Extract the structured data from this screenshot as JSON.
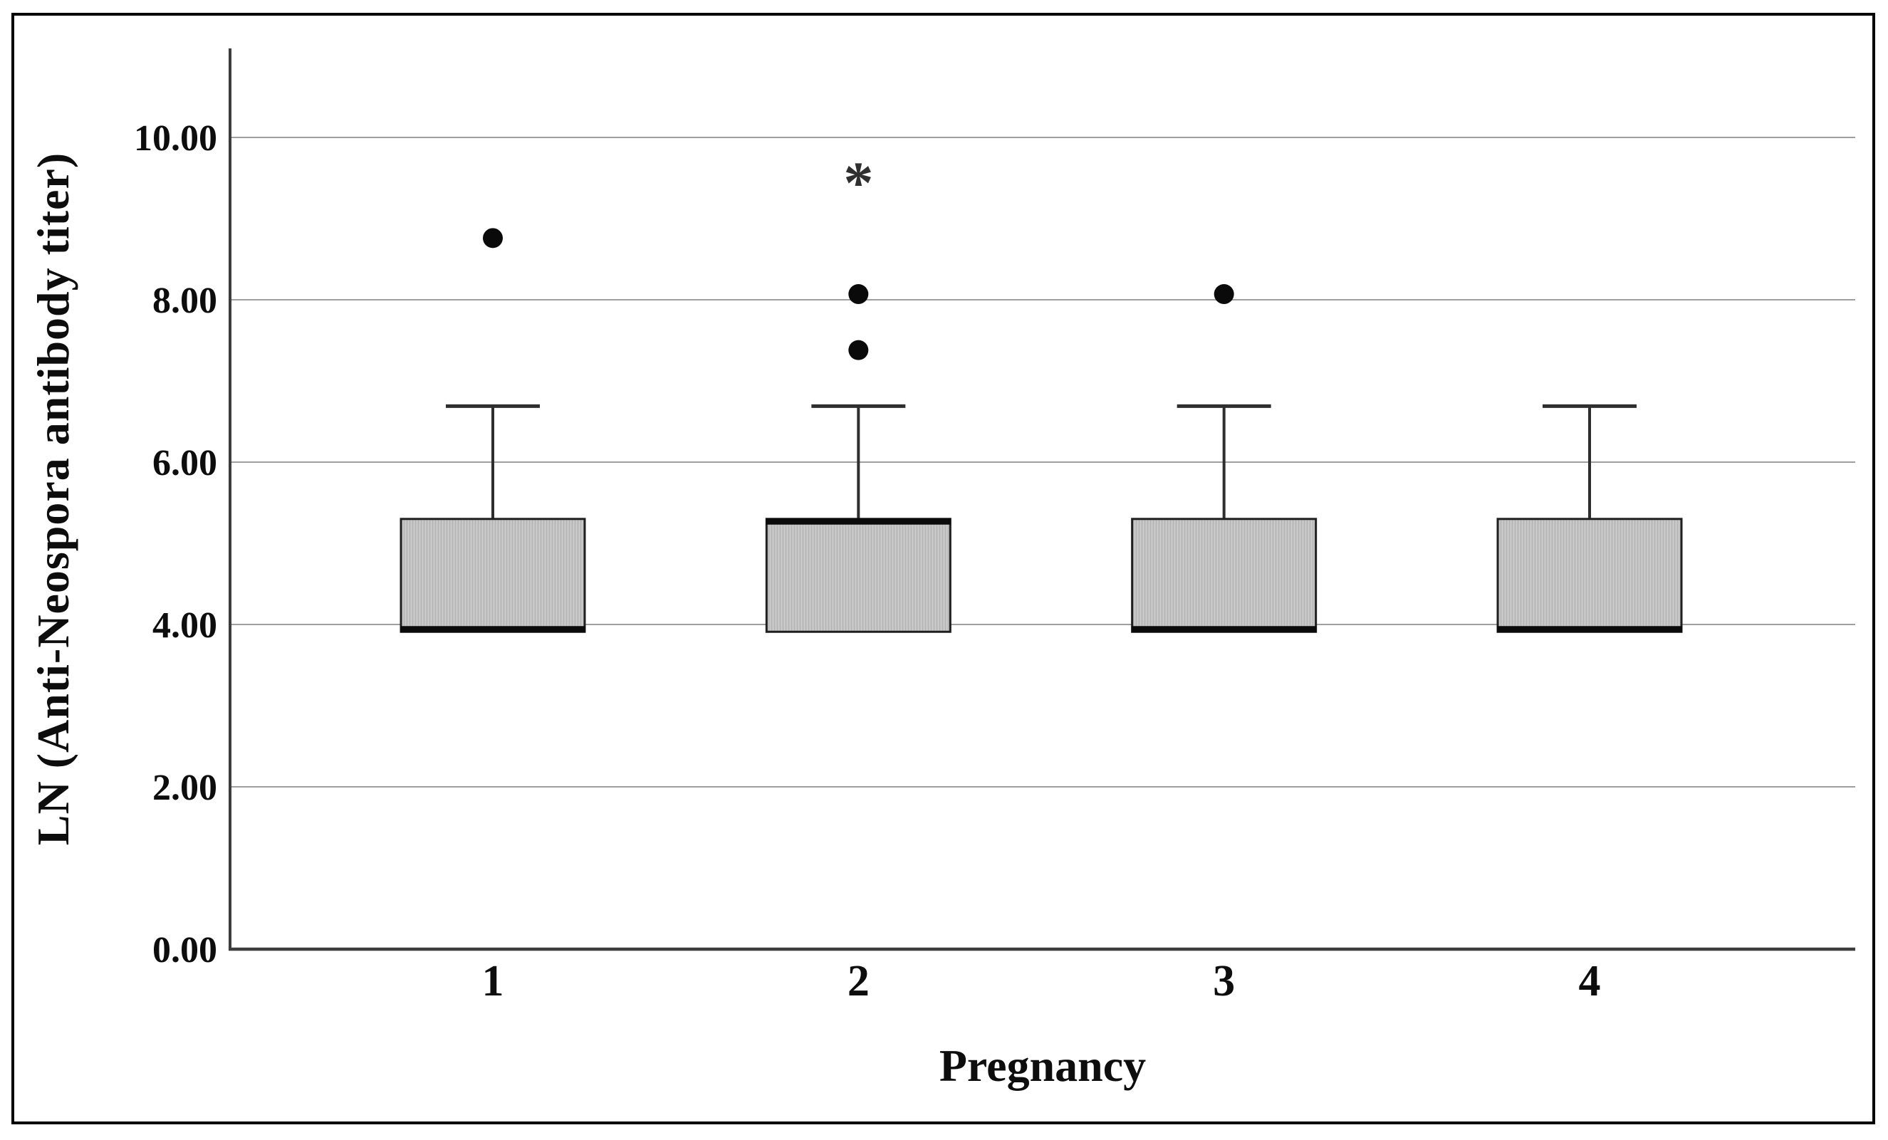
{
  "figure": {
    "background": "#ffffff",
    "border_color": "#000000"
  },
  "chart_data": {
    "type": "box",
    "title": "",
    "xlabel": "Pregnancy",
    "ylabel": "LN (Anti-Neospora antibody titer)",
    "categories": [
      "1",
      "2",
      "3",
      "4"
    ],
    "ylim": [
      0,
      11.1
    ],
    "grid": "horizontal",
    "legend": "none",
    "y_ticks": [
      {
        "label": "0.00",
        "value": 0
      },
      {
        "label": "2.00",
        "value": 2
      },
      {
        "label": "4.00",
        "value": 4
      },
      {
        "label": "6.00",
        "value": 6
      },
      {
        "label": "8.00",
        "value": 8
      },
      {
        "label": "10.00",
        "value": 10
      }
    ],
    "extreme_marker": "*",
    "boxes": [
      {
        "category": "1",
        "q1": 3.91,
        "median": 3.91,
        "q3": 5.3,
        "lower_whisker": 3.91,
        "upper_whisker": 6.69,
        "median_at": "bottom",
        "outliers": [
          8.76
        ],
        "extreme_outliers": []
      },
      {
        "category": "2",
        "q1": 3.91,
        "median": 5.3,
        "q3": 5.3,
        "lower_whisker": 3.91,
        "upper_whisker": 6.69,
        "median_at": "top",
        "outliers": [
          8.07,
          7.38
        ],
        "extreme_outliers": [
          9.46
        ]
      },
      {
        "category": "3",
        "q1": 3.91,
        "median": 3.91,
        "q3": 5.3,
        "lower_whisker": 3.91,
        "upper_whisker": 6.69,
        "median_at": "bottom",
        "outliers": [
          8.07
        ],
        "extreme_outliers": []
      },
      {
        "category": "4",
        "q1": 3.91,
        "median": 3.91,
        "q3": 5.3,
        "lower_whisker": 3.91,
        "upper_whisker": 6.69,
        "median_at": "bottom",
        "outliers": [],
        "extreme_outliers": []
      }
    ],
    "colors": {
      "box_fill": "#c0c0c0",
      "box_border": "#1f1f1f",
      "median_line": "#0b0b0b",
      "whisker": "#2e2e2e",
      "gridline": "#9f9f9f",
      "axis_line": "#3d3d3d",
      "outlier_dot": "#0a0a0a",
      "extreme_marker_color": "#2f2f2f",
      "tick_text": "#0d0d0d"
    }
  }
}
